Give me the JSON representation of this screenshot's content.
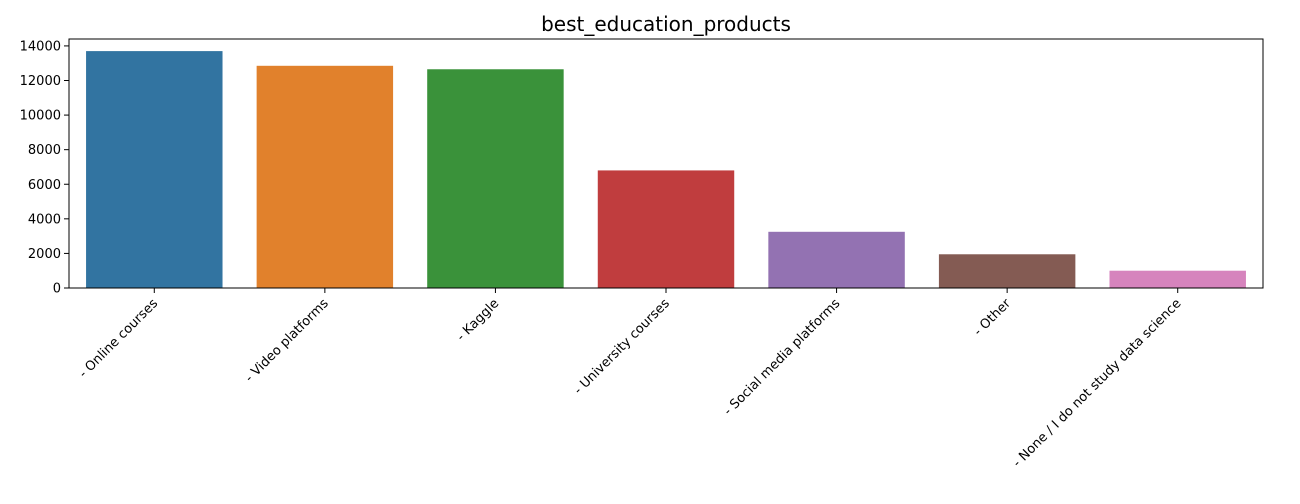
{
  "chart_data": {
    "type": "bar",
    "title": "best_education_products",
    "xlabel": "",
    "ylabel": "",
    "categories": [
      "- Online courses",
      "- Video platforms",
      "- Kaggle",
      "- University courses",
      "- Social media platforms",
      "- Other",
      "- None / I do not study data science"
    ],
    "values": [
      13700,
      12850,
      12650,
      6800,
      3250,
      1950,
      1000
    ],
    "colors": [
      "#3274a1",
      "#e1812c",
      "#3a923a",
      "#c03d3e",
      "#9372b2",
      "#845b53",
      "#d684bd"
    ],
    "yticks": [
      0,
      2000,
      4000,
      6000,
      8000,
      10000,
      12000,
      14000
    ],
    "ylim": [
      0,
      14400
    ],
    "grid": false,
    "legend": "none"
  }
}
